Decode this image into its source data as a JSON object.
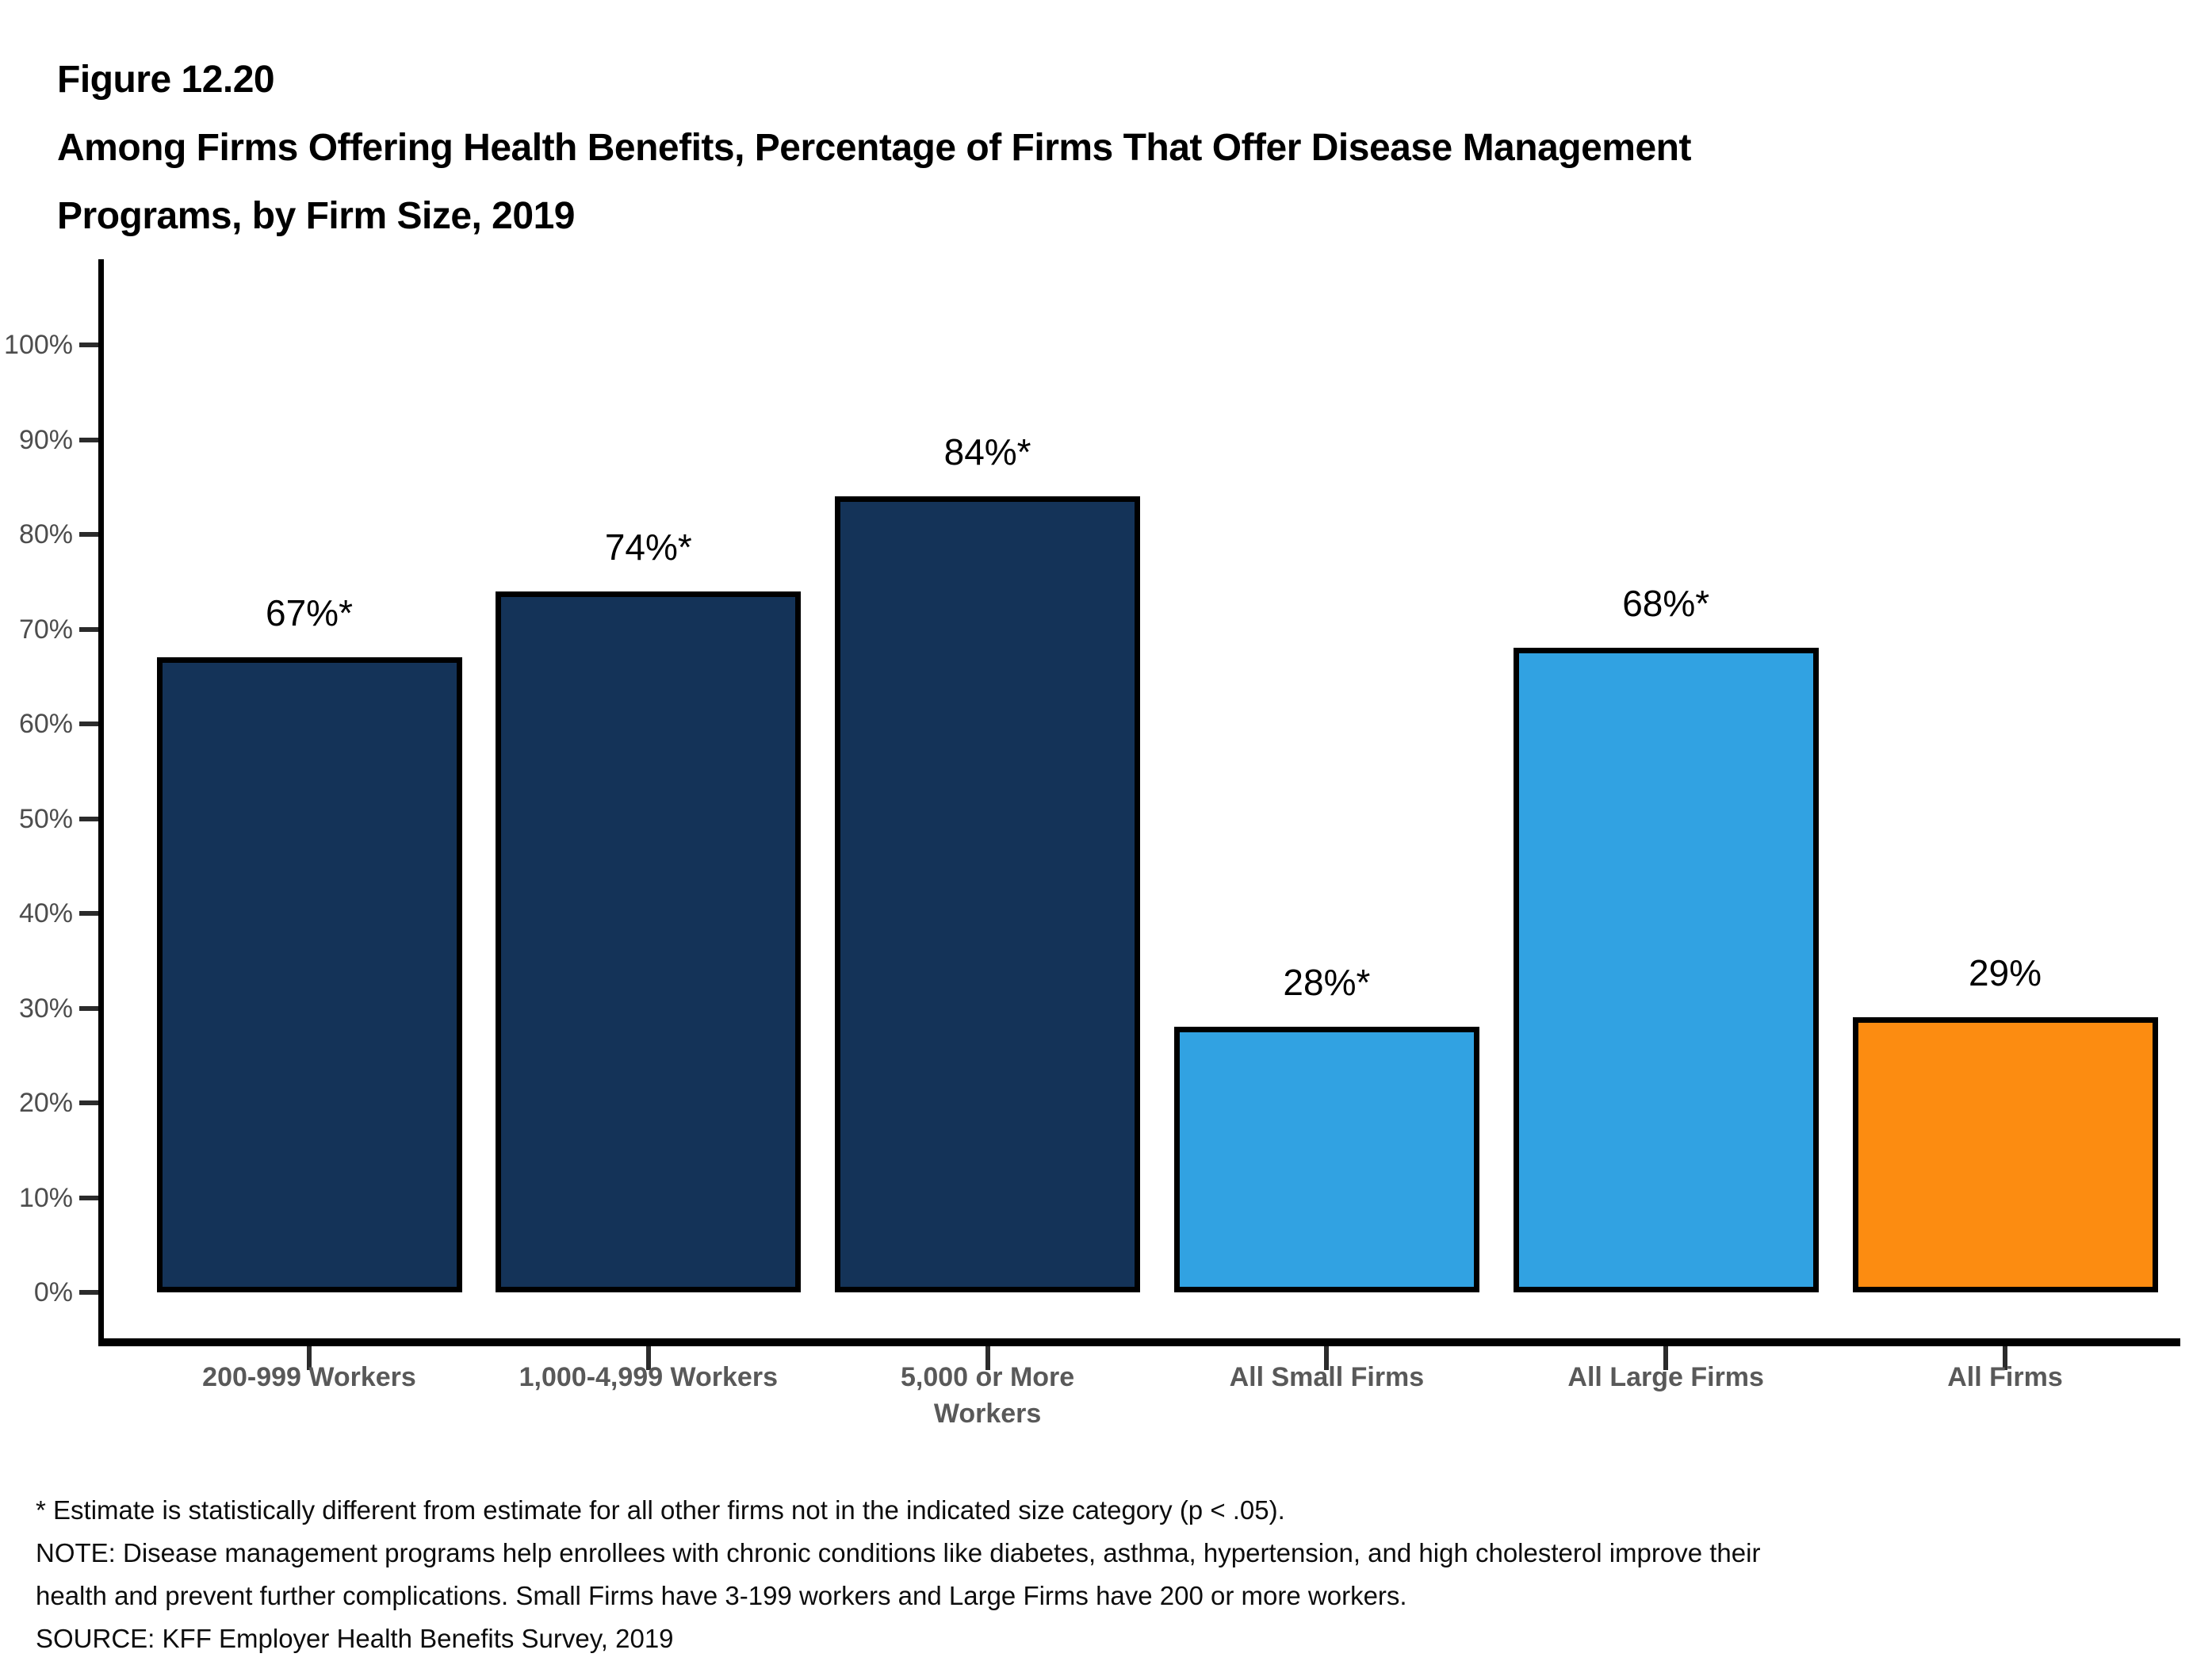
{
  "title": {
    "figure_label": "Figure 12.20",
    "line1": "Among Firms Offering Health Benefits, Percentage of Firms That Offer Disease Management",
    "line2": "Programs, by Firm Size, 2019"
  },
  "chart_data": {
    "type": "bar",
    "categories": [
      "200-999 Workers",
      "1,000-4,999 Workers",
      "5,000 or More Workers",
      "All Small Firms",
      "All Large Firms",
      "All Firms"
    ],
    "categories_display": [
      [
        "200-999 Workers"
      ],
      [
        "1,000-4,999 Workers"
      ],
      [
        "5,000 or More",
        "Workers"
      ],
      [
        "All Small Firms"
      ],
      [
        "All Large Firms"
      ],
      [
        "All Firms"
      ]
    ],
    "values": [
      67,
      74,
      84,
      28,
      68,
      29
    ],
    "value_labels": [
      "67%*",
      "74%%*",
      "84%*",
      "28%*",
      "68%*",
      "29%"
    ],
    "bar_colors": [
      "#143358",
      "#143358",
      "#143358",
      "#31A2E2",
      "#31A2E2",
      "#FC8C11"
    ],
    "title": "Among Firms Offering Health Benefits, Percentage of Firms That Offer Disease Management Programs, by Firm Size, 2019",
    "xlabel": "",
    "ylabel": "",
    "ylim": [
      0,
      100
    ],
    "ytick_labels": [
      "0%",
      "10%",
      "20%",
      "30%",
      "40%",
      "50%",
      "60%",
      "70%",
      "80%",
      "90%",
      "100%"
    ],
    "grid": false,
    "legend": null
  },
  "footnotes": {
    "lines": [
      "* Estimate is statistically different from estimate for all other firms not in the indicated size category (p < .05).",
      "NOTE: Disease management programs help enrollees with chronic conditions like diabetes, asthma, hypertension, and high cholesterol improve their",
      "health and prevent further complications. Small Firms have 3-199 workers and Large Firms have 200 or more workers.",
      "SOURCE: KFF Employer Health Benefits Survey, 2019"
    ]
  }
}
